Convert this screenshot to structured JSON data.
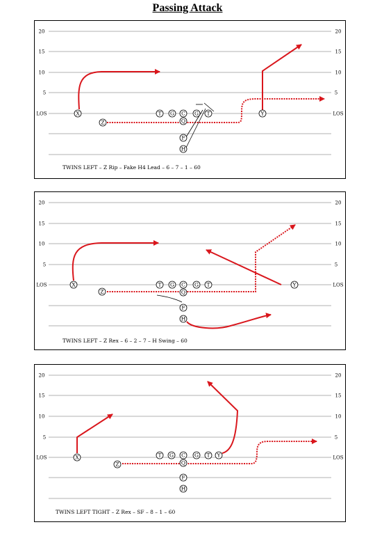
{
  "title": "Passing Attack",
  "colors": {
    "route": "#d9161c",
    "line": "#000000"
  },
  "plays": [
    {
      "caption": "TWINS LEFT – Z Rip – Fake H4 Lead – 6 – 7 – 1 – 60",
      "yard_labels": {
        "l20": "20",
        "l15": "15",
        "l10": "10",
        "l5": "5",
        "los": "LOS"
      },
      "players": {
        "x": "X",
        "z": "Z",
        "lt": "T",
        "lg": "G",
        "c": "C",
        "rg": "G",
        "rt": "T",
        "q": "Q",
        "f": "F",
        "h": "H",
        "y": "Y"
      }
    },
    {
      "caption": "TWINS LEFT – Z Rex – 6 – 2 – 7 – H Swing – 60",
      "yard_labels": {
        "l20": "20",
        "l15": "15",
        "l10": "10",
        "l5": "5",
        "los": "LOS"
      },
      "players": {
        "x": "X",
        "z": "Z",
        "lt": "T",
        "lg": "G",
        "c": "C",
        "rg": "G",
        "rt": "T",
        "q": "Q",
        "f": "F",
        "h": "H",
        "y": "Y"
      }
    },
    {
      "caption": "TWINS LEFT TIGHT – Z Rex – SF – 8 – 1 – 60",
      "yard_labels": {
        "l20": "20",
        "l15": "15",
        "l10": "10",
        "l5": "5",
        "los": "LOS"
      },
      "players": {
        "x": "X",
        "z": "Z",
        "lt": "T",
        "lg": "G",
        "c": "C",
        "rg": "G",
        "rt": "T",
        "y": "Y",
        "q": "Q",
        "f": "F",
        "h": "H"
      }
    }
  ]
}
